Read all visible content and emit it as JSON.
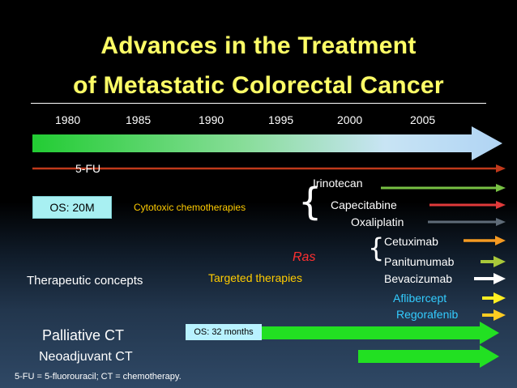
{
  "slide": {
    "title_line1": "Advances in the Treatment",
    "title_line2": "of Metastatic Colorectal Cancer",
    "years": [
      "1980",
      "1985",
      "1990",
      "1995",
      "2000",
      "2005"
    ],
    "fu_label": "5-FU",
    "os_20m": "OS: 20M",
    "cytotoxic_label": "Cytotoxic chemotherapies",
    "drugs": {
      "irinotecan": "Irinotecan",
      "capecitabine": "Capecitabine",
      "oxaliplatin": "Oxaliplatin",
      "cetuximab": "Cetuximab",
      "panitumumab": "Panitumumab",
      "bevacizumab": "Bevacizumab",
      "aflibercept": "Aflibercept",
      "regorafenib": "Regorafenib"
    },
    "ras_label": "Ras",
    "targeted_label": "Targeted therapies",
    "therapeutic_concepts": "Therapeutic concepts",
    "palliative_ct": "Palliative CT",
    "neoadjuvant_ct": "Neoadjuvant CT",
    "os_32": "OS: 32 months",
    "footnote": "5-FU = 5-fluorouracil; CT = chemotherapy."
  },
  "colors": {
    "title": "#ffff66",
    "fu_arrow": "#c0391b",
    "irinotecan": "#77c043",
    "capecitabine": "#e03a3a",
    "oxaliplatin": "#5f6b78",
    "cetuximab": "#f59a22",
    "panitumumab": "#a9c83a",
    "bevacizumab": "#ffffff",
    "aflibercept": "#ffee22",
    "regorafenib": "#ffcc22",
    "ct_arrow": "#22e022",
    "ras": "#ff3030",
    "targeted": "#ffcc00",
    "cytotoxic": "#ffcc00",
    "drug_cyan": "#33ccff"
  }
}
